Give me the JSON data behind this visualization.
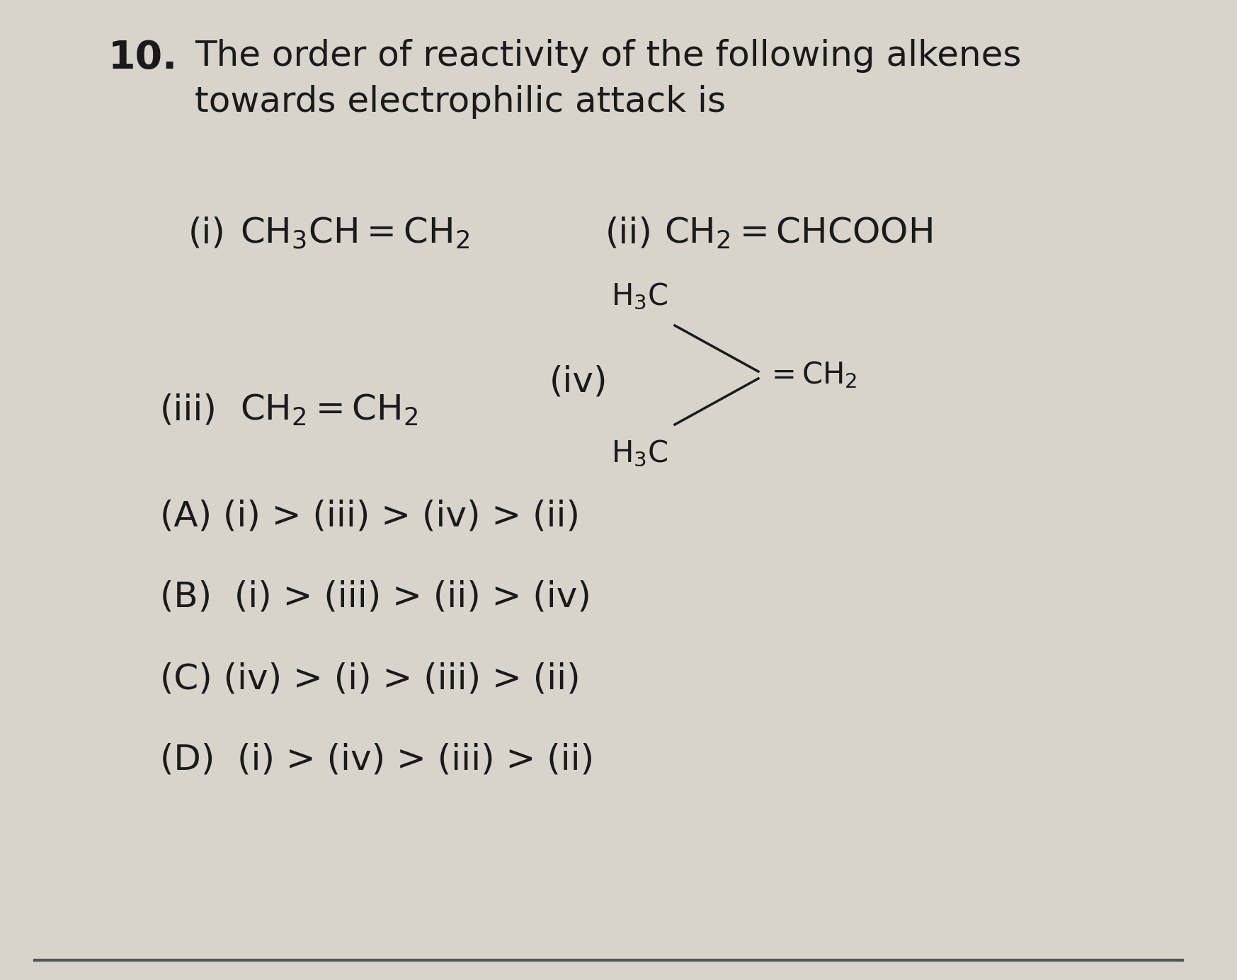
{
  "background_color": "#d8d4cc",
  "question_number": "10.",
  "question_text_line1": "The order of reactivity of the following alkenes",
  "question_text_line2": "towards electrophilic attack is",
  "compound_i_label": "(i)",
  "compound_ii_label": "(ii)",
  "compound_iii_label": "(iii)",
  "compound_iv_label": "(iv)",
  "option_A": "(A) (i) > (iii) > (iv) > (ii)",
  "option_B": "(B)  (i) > (iii) > (ii) > (iv)",
  "option_C": "(C) (iv) > (i) > (iii) > (ii)",
  "option_D": "(D)  (i) > (iv) > (iii) > (ii)",
  "text_color": "#1a1a1a",
  "font_size_question": 36,
  "font_size_formula": 36,
  "font_size_options": 36,
  "font_size_number": 40,
  "font_size_sub": 30
}
